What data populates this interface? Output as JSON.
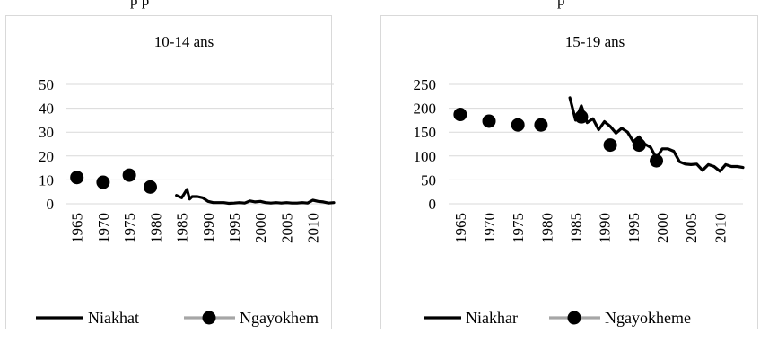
{
  "page": {
    "top_left_fragment": "p p",
    "top_right_fragment": "p"
  },
  "chart_data": [
    {
      "type": "line",
      "title": "10-14 ans",
      "xlabel": "",
      "ylabel": "",
      "ylim": [
        0,
        50
      ],
      "yticks": [
        "0",
        "10",
        "20",
        "30",
        "40",
        "50"
      ],
      "xlim": [
        1963,
        2014
      ],
      "xticks": [
        "1965",
        "1970",
        "1975",
        "1980",
        "1985",
        "1990",
        "1995",
        "2000",
        "2005",
        "2010"
      ],
      "grid": true,
      "legend": "bottom",
      "series": [
        {
          "name": "Niakhat",
          "style": "line",
          "color": "#000000",
          "x": [
            1984,
            1985,
            1986,
            1986.5,
            1987,
            1988,
            1989,
            1990,
            1991,
            1992,
            1993,
            1994,
            1995,
            1996,
            1997,
            1998,
            1999,
            2000,
            2001,
            2002,
            2003,
            2004,
            2005,
            2006,
            2007,
            2008,
            2009,
            2010,
            2011,
            2012,
            2013,
            2014
          ],
          "y": [
            3.5,
            2.5,
            6.0,
            2.0,
            3.0,
            3.0,
            2.5,
            1.0,
            0.5,
            0.5,
            0.5,
            0.2,
            0.3,
            0.5,
            0.3,
            1.2,
            0.8,
            1.0,
            0.5,
            0.3,
            0.5,
            0.3,
            0.5,
            0.3,
            0.3,
            0.5,
            0.3,
            1.5,
            1.0,
            0.8,
            0.3,
            0.5
          ]
        },
        {
          "name": "Ngayokhem",
          "style": "marker",
          "color": "#000000",
          "x": [
            1965,
            1970,
            1975,
            1979
          ],
          "y": [
            11,
            9,
            12,
            7
          ]
        }
      ]
    },
    {
      "type": "line",
      "title": "15-19 ans",
      "xlabel": "",
      "ylabel": "",
      "ylim": [
        0,
        250
      ],
      "yticks": [
        "0",
        "50",
        "100",
        "150",
        "200",
        "250"
      ],
      "xlim": [
        1963,
        2014
      ],
      "xticks": [
        "1965",
        "1970",
        "1975",
        "1980",
        "1985",
        "1990",
        "1995",
        "2000",
        "2005",
        "2010"
      ],
      "grid": true,
      "legend": "bottom",
      "series": [
        {
          "name": "Niakhar",
          "style": "line",
          "color": "#000000",
          "x": [
            1984,
            1985,
            1986,
            1987,
            1988,
            1989,
            1990,
            1991,
            1992,
            1993,
            1994,
            1995,
            1996,
            1997,
            1998,
            1999,
            2000,
            2001,
            2002,
            2003,
            2004,
            2005,
            2006,
            2007,
            2008,
            2009,
            2010,
            2011,
            2012,
            2013,
            2014
          ],
          "y": [
            222,
            175,
            205,
            170,
            178,
            155,
            172,
            162,
            148,
            158,
            150,
            130,
            140,
            125,
            118,
            95,
            115,
            115,
            110,
            88,
            83,
            82,
            83,
            70,
            82,
            78,
            68,
            82,
            78,
            78,
            76
          ]
        },
        {
          "name": "Ngayokheme",
          "style": "marker",
          "color": "#000000",
          "x": [
            1965,
            1970,
            1975,
            1979,
            1986,
            1991,
            1996,
            1999
          ],
          "y": [
            187,
            173,
            165,
            165,
            182,
            123,
            123,
            90
          ]
        }
      ]
    }
  ]
}
